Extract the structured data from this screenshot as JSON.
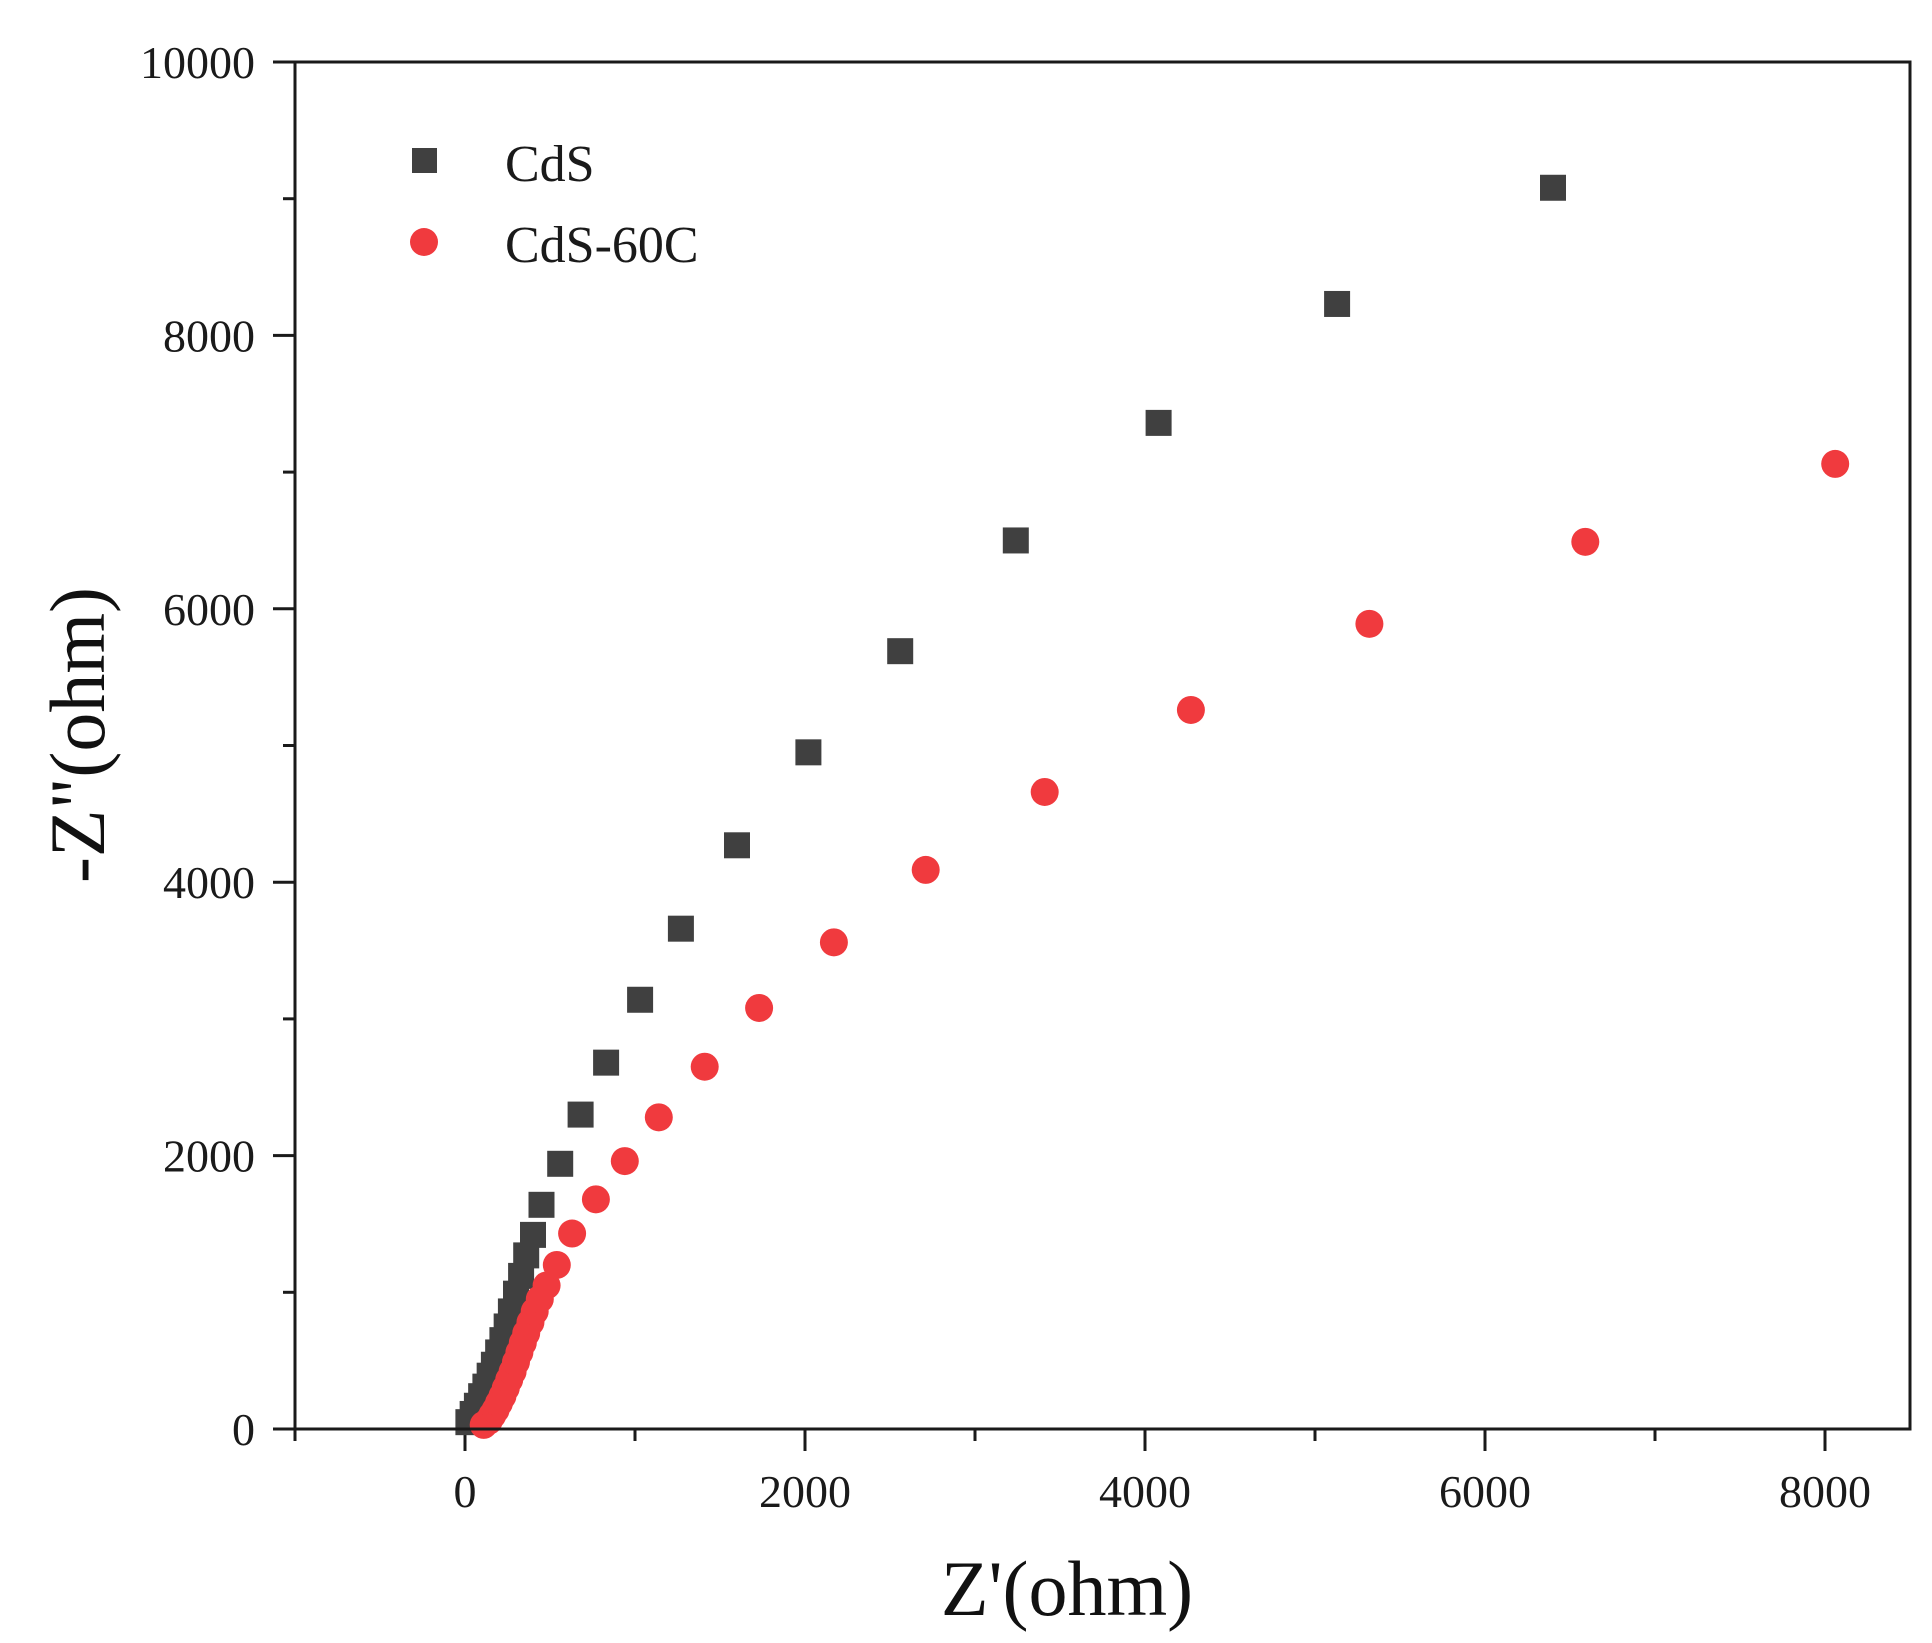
{
  "chart_data": {
    "type": "scatter",
    "title": "",
    "xlabel": "Z'(ohm)",
    "ylabel": "-Z\"(ohm)",
    "xlim": [
      -1000,
      8500
    ],
    "ylim": [
      0,
      10000
    ],
    "xticks": [
      0,
      2000,
      4000,
      6000,
      8000
    ],
    "yticks": [
      0,
      2000,
      4000,
      6000,
      8000,
      10000
    ],
    "xtick_labels": [
      "0",
      "2000",
      "4000",
      "6000",
      "8000"
    ],
    "ytick_labels": [
      "0",
      "2000",
      "4000",
      "6000",
      "8000",
      "10000"
    ],
    "x_minor_step": 1000,
    "y_minor_step": 1000,
    "grid": false,
    "legend_position": "top-left",
    "series": [
      {
        "name": "CdS",
        "marker": "square",
        "color": "#404040",
        "x": [
          20,
          45,
          70,
          95,
          120,
          145,
          170,
          195,
          220,
          245,
          270,
          300,
          330,
          360,
          400,
          450,
          560,
          680,
          830,
          1030,
          1270,
          1600,
          2020,
          2560,
          3240,
          4080,
          5130,
          6400
        ],
        "y": [
          50,
          110,
          170,
          240,
          310,
          390,
          470,
          560,
          650,
          750,
          860,
          990,
          1120,
          1270,
          1420,
          1640,
          1940,
          2300,
          2680,
          3140,
          3660,
          4270,
          4950,
          5690,
          6500,
          7360,
          8230,
          9080
        ]
      },
      {
        "name": "CdS-60C",
        "marker": "circle",
        "color": "#f03a3e",
        "x": [
          110,
          140,
          160,
          180,
          200,
          220,
          240,
          260,
          280,
          300,
          320,
          340,
          360,
          385,
          410,
          440,
          480,
          540,
          630,
          770,
          940,
          1140,
          1410,
          1730,
          2170,
          2710,
          3410,
          4270,
          5320,
          6590,
          8060
        ],
        "y": [
          30,
          60,
          100,
          140,
          190,
          240,
          300,
          360,
          420,
          490,
          560,
          630,
          700,
          780,
          860,
          950,
          1050,
          1200,
          1430,
          1680,
          1960,
          2280,
          2650,
          3080,
          3560,
          4090,
          4660,
          5260,
          5890,
          6490,
          7060
        ]
      }
    ]
  }
}
